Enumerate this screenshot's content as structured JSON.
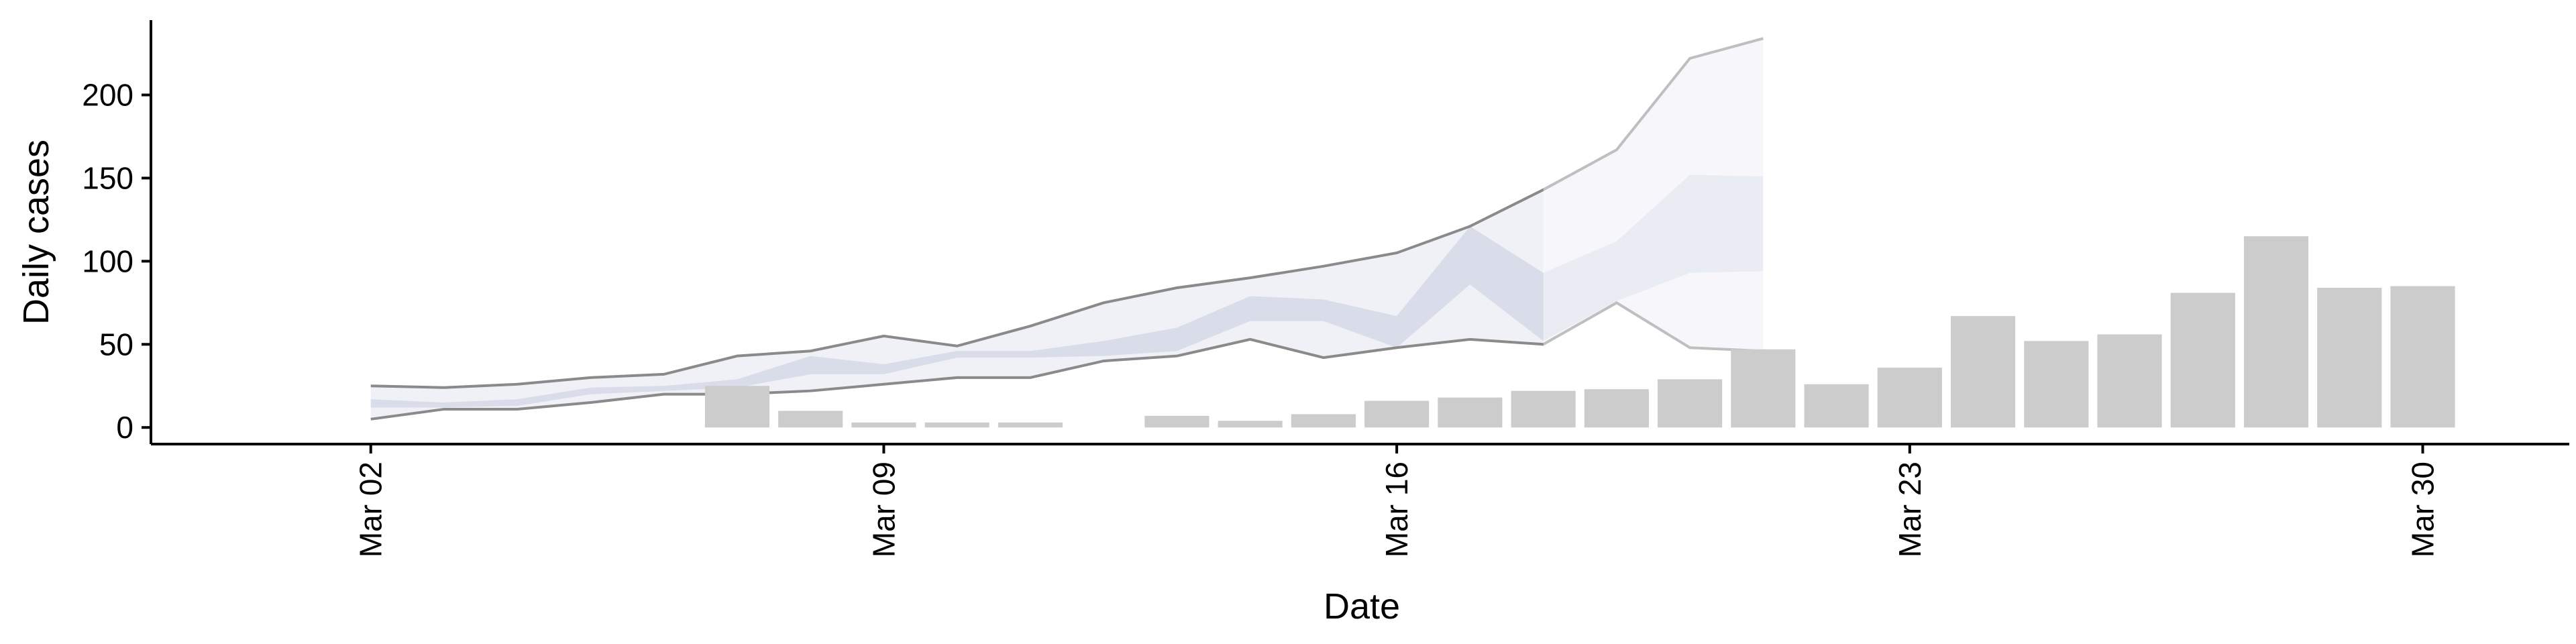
{
  "chart_data": {
    "type": "bar+line",
    "xlabel": "Date",
    "ylabel": "Daily cases",
    "x_tick_labels": [
      "Mar 02",
      "Mar 09",
      "Mar 16",
      "Mar 23",
      "Mar 30"
    ],
    "x_tick_dates": [
      "2020-03-02",
      "2020-03-09",
      "2020-03-16",
      "2020-03-23",
      "2020-03-30"
    ],
    "y_ticks": [
      0,
      50,
      100,
      150,
      200
    ],
    "ylim": [
      -10,
      245
    ],
    "xlim": [
      "2020-02-28",
      "2020-04-01"
    ],
    "grid": false,
    "legend": "none",
    "colors": {
      "bars": "#cccccc",
      "band_inner": "#d5d9e6",
      "band_outer": "#eef0f6",
      "band_lines": "#8a8a8a",
      "axis": "#000000"
    },
    "bars": {
      "dates": [
        "2020-03-07",
        "2020-03-08",
        "2020-03-09",
        "2020-03-10",
        "2020-03-11",
        "2020-03-12",
        "2020-03-13",
        "2020-03-14",
        "2020-03-15",
        "2020-03-16",
        "2020-03-17",
        "2020-03-18",
        "2020-03-19",
        "2020-03-20",
        "2020-03-21",
        "2020-03-22",
        "2020-03-23",
        "2020-03-24",
        "2020-03-25",
        "2020-03-26",
        "2020-03-27",
        "2020-03-28",
        "2020-03-29",
        "2020-03-30"
      ],
      "values": [
        25,
        10,
        3,
        3,
        3,
        0,
        7,
        4,
        8,
        16,
        18,
        22,
        23,
        29,
        47,
        26,
        36,
        67,
        52,
        56,
        81,
        115,
        84,
        85
      ]
    },
    "estimate": {
      "dates": [
        "2020-03-02",
        "2020-03-03",
        "2020-03-04",
        "2020-03-05",
        "2020-03-06",
        "2020-03-07",
        "2020-03-08",
        "2020-03-09",
        "2020-03-10",
        "2020-03-11",
        "2020-03-12",
        "2020-03-13",
        "2020-03-14",
        "2020-03-15",
        "2020-03-16",
        "2020-03-17",
        "2020-03-18",
        "2020-03-19",
        "2020-03-20",
        "2020-03-21"
      ],
      "lower90": [
        5,
        11,
        11,
        15,
        20,
        20,
        22,
        26,
        30,
        30,
        40,
        43,
        53,
        42,
        48,
        53,
        50,
        75,
        48,
        46
      ],
      "lower50": [
        12,
        12,
        13,
        20,
        22,
        24,
        32,
        32,
        42,
        42,
        43,
        46,
        64,
        64,
        48,
        86,
        52,
        76,
        93,
        94
      ],
      "upper50": [
        17,
        15,
        17,
        24,
        25,
        29,
        43,
        38,
        46,
        46,
        52,
        60,
        79,
        77,
        67,
        121,
        93,
        112,
        152,
        151
      ],
      "upper90": [
        25,
        24,
        26,
        30,
        32,
        43,
        46,
        55,
        49,
        61,
        75,
        84,
        90,
        97,
        105,
        121,
        143,
        167,
        222,
        234
      ]
    }
  }
}
